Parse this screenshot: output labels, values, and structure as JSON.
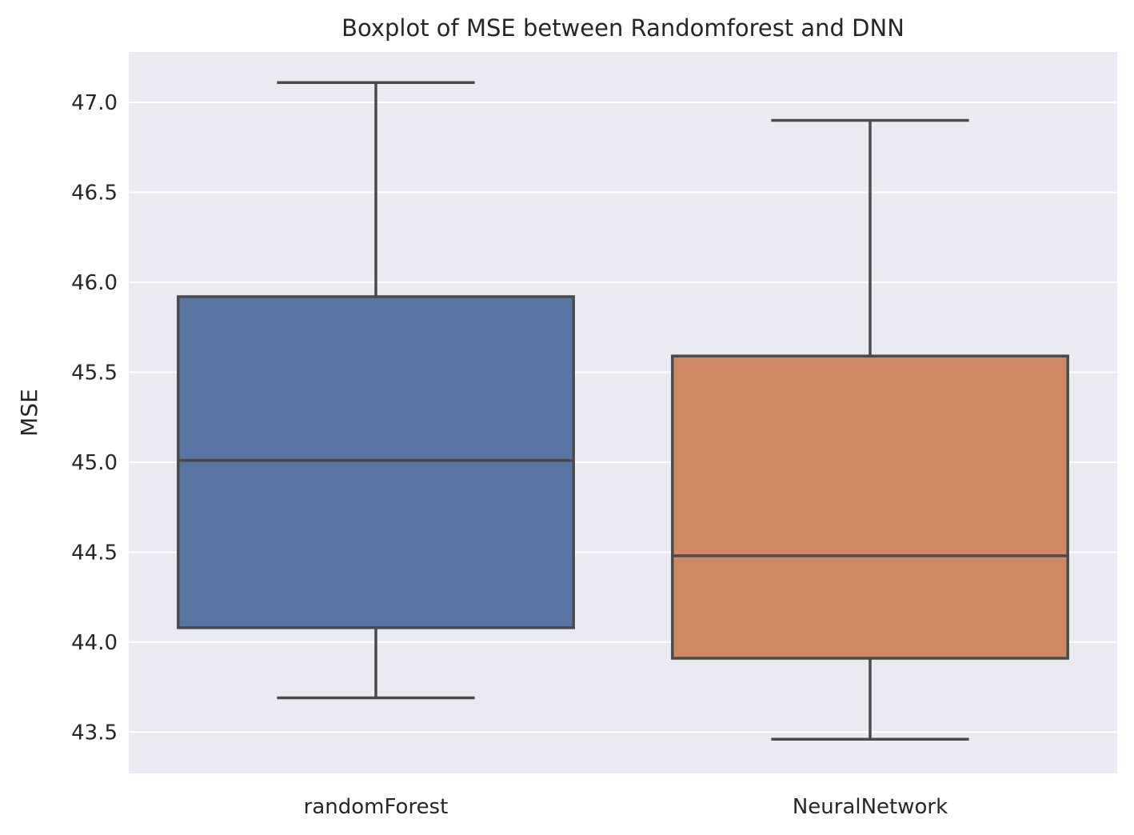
{
  "chart_data": {
    "type": "boxplot",
    "title": "Boxplot of MSE between Randomforest and DNN",
    "xlabel": "",
    "ylabel": "MSE",
    "ylim": [
      43.27,
      47.28
    ],
    "yticks": [
      43.5,
      44.0,
      44.5,
      45.0,
      45.5,
      46.0,
      46.5,
      47.0
    ],
    "ytick_labels": [
      "43.5",
      "44.0",
      "44.5",
      "45.0",
      "45.5",
      "46.0",
      "46.5",
      "47.0"
    ],
    "grid": true,
    "categories": [
      "randomForest",
      "NeuralNetwork"
    ],
    "boxes": [
      {
        "category": "randomForest",
        "whisker_low": 43.69,
        "q1": 44.08,
        "median": 45.01,
        "q3": 45.92,
        "whisker_high": 47.11
      },
      {
        "category": "NeuralNetwork",
        "whisker_low": 43.46,
        "q1": 43.91,
        "median": 44.48,
        "q3": 45.59,
        "whisker_high": 46.9
      }
    ],
    "colors": {
      "background": "#eaeaf2",
      "grid": "#ffffff",
      "line": "#4a4a4a",
      "boxes": [
        "#5975a4",
        "#cc8963"
      ]
    }
  }
}
